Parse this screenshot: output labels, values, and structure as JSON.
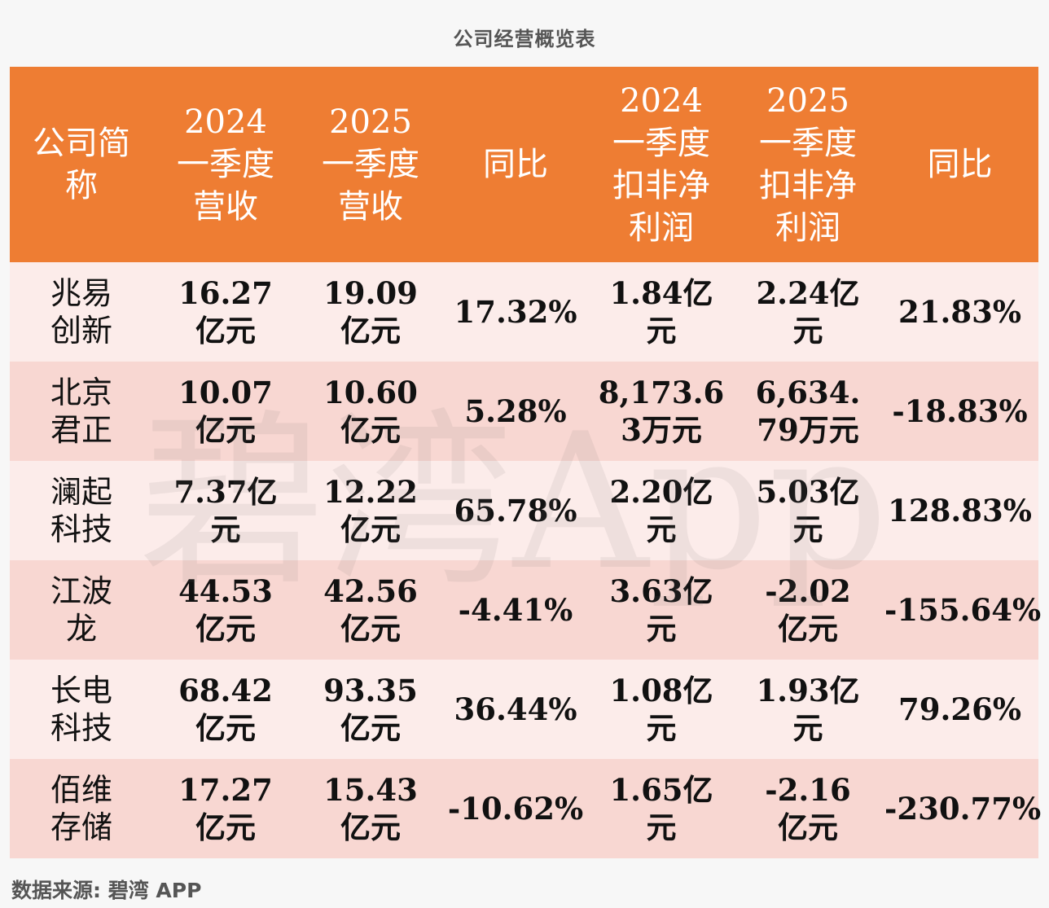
{
  "title": "公司经营概览表",
  "watermark": "碧湾App",
  "source": "数据来源: 碧湾 APP",
  "chart_data": {
    "type": "table",
    "title": "公司经营概览表",
    "columns": [
      "公司简称",
      "2024一季度营收",
      "2025一季度营收",
      "同比",
      "2024一季度扣非净利润",
      "2025一季度扣非净利润",
      "同比"
    ],
    "rows": [
      [
        "兆易创新",
        "16.27亿元",
        "19.09亿元",
        "17.32%",
        "1.84亿元",
        "2.24亿元",
        "21.83%"
      ],
      [
        "北京君正",
        "10.07亿元",
        "10.60亿元",
        "5.28%",
        "8,173.63万元",
        "6,634.79万元",
        "-18.83%"
      ],
      [
        "澜起科技",
        "7.37亿元",
        "12.22亿元",
        "65.78%",
        "2.20亿元",
        "5.03亿元",
        "128.83%"
      ],
      [
        "江波龙",
        "44.53亿元",
        "42.56亿元",
        "-4.41%",
        "3.63亿元",
        "-2.02亿元",
        "-155.64%"
      ],
      [
        "长电科技",
        "68.42亿元",
        "93.35亿元",
        "36.44%",
        "1.08亿元",
        "1.93亿元",
        "79.26%"
      ],
      [
        "佰维存储",
        "17.27亿元",
        "15.43亿元",
        "-10.62%",
        "1.65亿元",
        "-2.16亿元",
        "-230.77%"
      ]
    ]
  }
}
